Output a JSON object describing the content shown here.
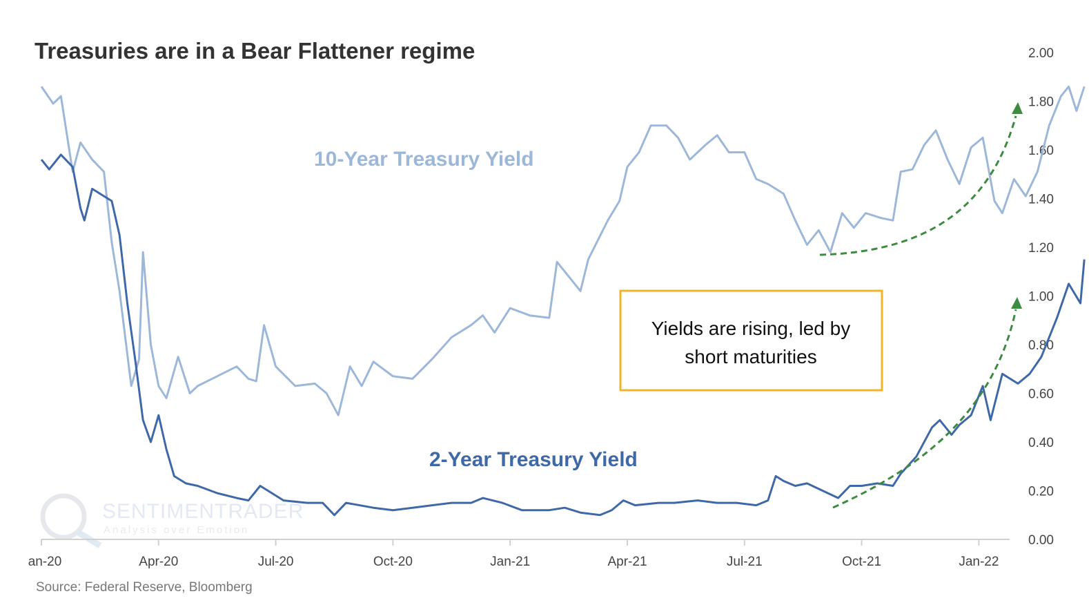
{
  "chart_data": {
    "type": "line",
    "title": "Treasuries are in a Bear Flattener regime",
    "source": "Source: Federal Reserve, Bloomberg",
    "x_unit": "months since Jan-2020",
    "xlim": [
      0,
      26.7
    ],
    "ylim": [
      0,
      2.0
    ],
    "yticks": [
      "0.00",
      "0.20",
      "0.40",
      "0.60",
      "0.80",
      "1.00",
      "1.20",
      "1.40",
      "1.60",
      "1.80",
      "2.00"
    ],
    "xticks": [
      {
        "label": "an-20",
        "x": 0
      },
      {
        "label": "Apr-20",
        "x": 3
      },
      {
        "label": "Jul-20",
        "x": 6
      },
      {
        "label": "Oct-20",
        "x": 9
      },
      {
        "label": "Jan-21",
        "x": 12
      },
      {
        "label": "Apr-21",
        "x": 15
      },
      {
        "label": "Jul-21",
        "x": 18
      },
      {
        "label": "Oct-21",
        "x": 21
      },
      {
        "label": "Jan-22",
        "x": 24
      }
    ],
    "series": [
      {
        "name": "10-Year Treasury Yield",
        "color": "#9db7d9",
        "x": [
          0,
          0.3,
          0.5,
          0.8,
          1.0,
          1.3,
          1.6,
          1.8,
          2.0,
          2.3,
          2.5,
          2.6,
          2.8,
          3.0,
          3.2,
          3.5,
          3.8,
          4.0,
          4.5,
          5.0,
          5.3,
          5.5,
          5.7,
          6.0,
          6.5,
          7.0,
          7.3,
          7.6,
          7.9,
          8.2,
          8.5,
          9.0,
          9.5,
          10.0,
          10.5,
          11.0,
          11.3,
          11.6,
          12.0,
          12.5,
          13.0,
          13.2,
          13.5,
          13.8,
          14.0,
          14.5,
          14.8,
          15.0,
          15.3,
          15.6,
          16.0,
          16.3,
          16.6,
          17.0,
          17.3,
          17.6,
          18.0,
          18.3,
          18.6,
          19.0,
          19.3,
          19.6,
          19.9,
          20.2,
          20.5,
          20.8,
          21.1,
          21.5,
          21.8,
          22.0,
          22.3,
          22.6,
          22.9,
          23.2,
          23.5,
          23.8,
          24.1,
          24.4,
          24.6,
          24.9,
          25.2,
          25.5,
          25.8,
          26.1,
          26.3,
          26.5,
          26.7
        ],
        "values": [
          1.86,
          1.79,
          1.82,
          1.51,
          1.63,
          1.56,
          1.51,
          1.22,
          1.02,
          0.63,
          0.74,
          1.18,
          0.8,
          0.63,
          0.58,
          0.75,
          0.6,
          0.63,
          0.67,
          0.71,
          0.66,
          0.65,
          0.88,
          0.71,
          0.63,
          0.64,
          0.6,
          0.51,
          0.71,
          0.63,
          0.73,
          0.67,
          0.66,
          0.74,
          0.83,
          0.88,
          0.92,
          0.85,
          0.95,
          0.92,
          0.91,
          1.14,
          1.08,
          1.02,
          1.15,
          1.31,
          1.39,
          1.53,
          1.59,
          1.7,
          1.7,
          1.65,
          1.56,
          1.62,
          1.66,
          1.59,
          1.59,
          1.48,
          1.46,
          1.42,
          1.31,
          1.21,
          1.27,
          1.18,
          1.34,
          1.28,
          1.34,
          1.32,
          1.31,
          1.51,
          1.52,
          1.62,
          1.68,
          1.56,
          1.46,
          1.61,
          1.65,
          1.39,
          1.34,
          1.48,
          1.41,
          1.51,
          1.7,
          1.82,
          1.86,
          1.76,
          1.86
        ]
      },
      {
        "name": "2-Year Treasury Yield",
        "color": "#3e68a8",
        "x": [
          0,
          0.2,
          0.5,
          0.8,
          1.0,
          1.1,
          1.3,
          1.6,
          1.8,
          2.0,
          2.2,
          2.4,
          2.6,
          2.8,
          3.0,
          3.2,
          3.4,
          3.7,
          4.0,
          4.5,
          5.0,
          5.3,
          5.6,
          5.9,
          6.2,
          6.8,
          7.2,
          7.5,
          7.8,
          8.5,
          9.0,
          9.5,
          10.0,
          10.5,
          11.0,
          11.3,
          11.8,
          12.3,
          13.0,
          13.4,
          13.8,
          14.3,
          14.6,
          14.9,
          15.2,
          15.8,
          16.2,
          16.8,
          17.3,
          17.8,
          18.3,
          18.6,
          18.8,
          19.0,
          19.3,
          19.6,
          20.0,
          20.4,
          20.7,
          21.0,
          21.4,
          21.8,
          22.0,
          22.4,
          22.8,
          23.0,
          23.3,
          23.5,
          23.8,
          24.1,
          24.3,
          24.6,
          25.0,
          25.3,
          25.6,
          26.0,
          26.3,
          26.6,
          26.7
        ],
        "values": [
          1.56,
          1.52,
          1.58,
          1.53,
          1.36,
          1.31,
          1.44,
          1.41,
          1.39,
          1.25,
          0.97,
          0.74,
          0.49,
          0.4,
          0.51,
          0.37,
          0.26,
          0.23,
          0.22,
          0.19,
          0.17,
          0.16,
          0.22,
          0.19,
          0.16,
          0.15,
          0.15,
          0.1,
          0.15,
          0.13,
          0.12,
          0.13,
          0.14,
          0.15,
          0.15,
          0.17,
          0.15,
          0.12,
          0.12,
          0.13,
          0.11,
          0.1,
          0.12,
          0.16,
          0.14,
          0.15,
          0.15,
          0.16,
          0.15,
          0.15,
          0.14,
          0.16,
          0.26,
          0.24,
          0.22,
          0.23,
          0.2,
          0.17,
          0.22,
          0.22,
          0.23,
          0.22,
          0.27,
          0.34,
          0.46,
          0.49,
          0.43,
          0.47,
          0.51,
          0.63,
          0.49,
          0.68,
          0.64,
          0.68,
          0.75,
          0.91,
          1.05,
          0.97,
          1.15
        ]
      }
    ],
    "annotations": {
      "label_10y": "10-Year Treasury Yield",
      "label_2y": "2-Year Treasury Yield",
      "note_line1": "Yields are rising, led by",
      "note_line2": "short maturities",
      "note_border_color": "#f0b429",
      "arrow_color": "#3d8b40"
    },
    "watermark": {
      "name": "SENTIMENTRADER",
      "tagline": "Analysis over Emotion"
    },
    "legend": "none",
    "grid": false
  }
}
